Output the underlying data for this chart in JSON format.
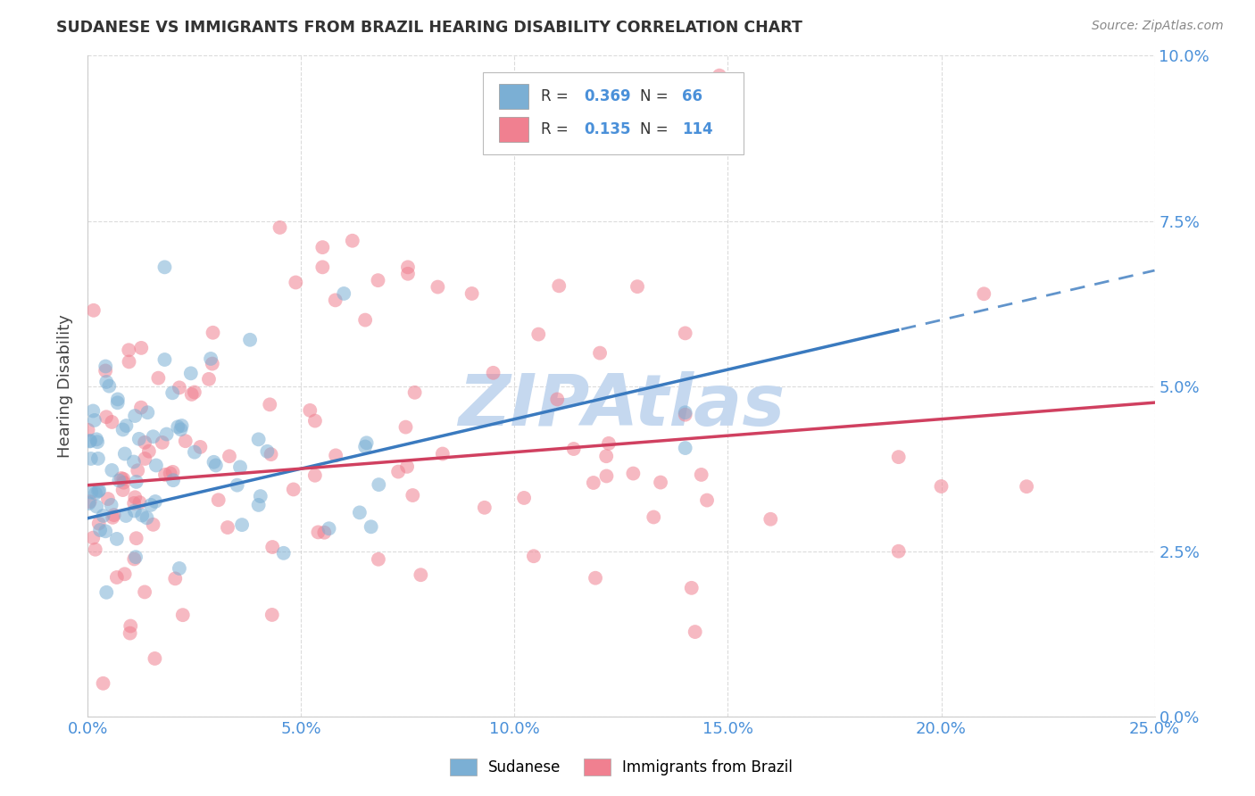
{
  "title": "SUDANESE VS IMMIGRANTS FROM BRAZIL HEARING DISABILITY CORRELATION CHART",
  "source": "Source: ZipAtlas.com",
  "ylabel": "Hearing Disability",
  "sudanese_R": 0.369,
  "sudanese_N": 66,
  "brazil_R": 0.135,
  "brazil_N": 114,
  "sudanese_color": "#7bafd4",
  "brazil_color": "#f08090",
  "trend_sudanese_color": "#3a7abf",
  "trend_brazil_color": "#d04060",
  "background_color": "#ffffff",
  "grid_color": "#cccccc",
  "watermark_color": "#c5d8ef",
  "title_color": "#333333",
  "source_color": "#888888",
  "axis_label_color": "#4a90d9",
  "xlim": [
    0.0,
    0.25
  ],
  "ylim": [
    0.0,
    0.1
  ],
  "sudanese_seed": 42,
  "brazil_seed": 7
}
